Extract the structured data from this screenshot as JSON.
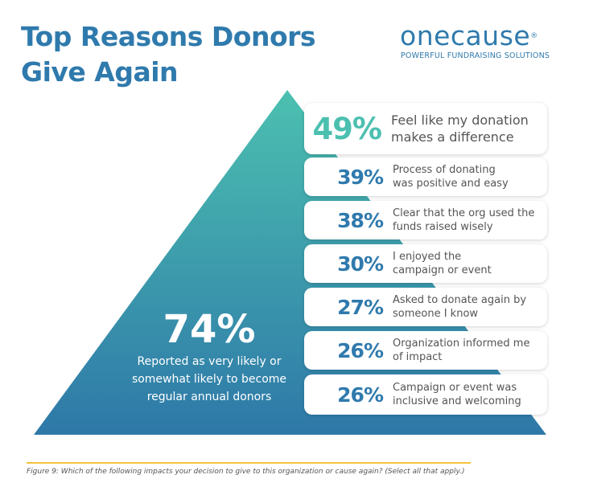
{
  "title_line1": "Top Reasons Donors",
  "title_line2": "Give Again",
  "logo": {
    "name": "onecause",
    "tagline": "POWERFUL FUNDRAISING SOLUTIONS"
  },
  "headline": {
    "value": "74%",
    "text": "Reported as very likely or somewhat likely to become regular annual donors"
  },
  "colors": {
    "teal": "#4cc0b0",
    "blue": "#2f7aad",
    "rule": "#f5c33b"
  },
  "reasons": [
    {
      "pct": "49%",
      "label1": "Feel like my donation",
      "label2": "makes a difference"
    },
    {
      "pct": "39%",
      "label1": "Process of donating",
      "label2": "was positive and easy"
    },
    {
      "pct": "38%",
      "label1": "Clear that the org used the",
      "label2": "funds raised wisely"
    },
    {
      "pct": "30%",
      "label1": "I enjoyed the",
      "label2": "campaign or event"
    },
    {
      "pct": "27%",
      "label1": "Asked to donate again by",
      "label2": "someone I know"
    },
    {
      "pct": "26%",
      "label1": "Organization informed me",
      "label2": "of impact"
    },
    {
      "pct": "26%",
      "label1": "Campaign or event was",
      "label2": "inclusive and welcoming"
    }
  ],
  "caption": "Figure 9: Which of the following impacts your decision to give to this organization or cause again? (Select all that apply.)"
}
